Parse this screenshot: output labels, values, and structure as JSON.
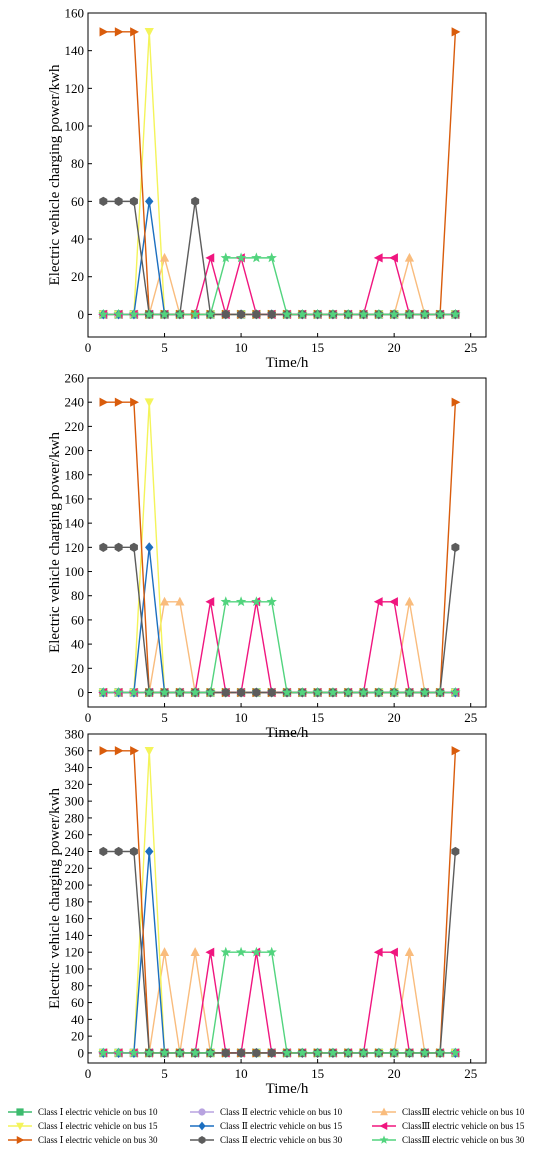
{
  "chart_data": [
    {
      "type": "line",
      "xlabel": "Time/h",
      "ylabel": "Electric vehicle charging power/kwh",
      "xlim": [
        0,
        26
      ],
      "ylim": [
        -12,
        160
      ],
      "xticks": [
        0,
        5,
        10,
        15,
        20,
        25
      ],
      "yticks": [
        0,
        20,
        40,
        60,
        80,
        100,
        120,
        140,
        160
      ],
      "x": [
        1,
        2,
        3,
        4,
        5,
        6,
        7,
        8,
        9,
        10,
        11,
        12,
        13,
        14,
        15,
        16,
        17,
        18,
        19,
        20,
        21,
        22,
        23,
        24
      ],
      "series": [
        {
          "name": "Class Ⅰ electric vehicle on bus 10",
          "color": "#3dbb6e",
          "marker": "square",
          "values": [
            0,
            0,
            0,
            0,
            0,
            0,
            0,
            0,
            0,
            0,
            0,
            0,
            0,
            0,
            0,
            0,
            0,
            0,
            0,
            0,
            0,
            0,
            0,
            0
          ]
        },
        {
          "name": "Class Ⅱ electric vehicle on bus 10",
          "color": "#b8a3e0",
          "marker": "circle",
          "values": [
            0,
            0,
            0,
            0,
            0,
            0,
            0,
            0,
            0,
            0,
            0,
            0,
            0,
            0,
            0,
            0,
            0,
            0,
            0,
            0,
            0,
            0,
            0,
            0
          ]
        },
        {
          "name": "ClassⅢ electric vehicle on bus 10",
          "color": "#f9bc7d",
          "marker": "triangle-up",
          "values": [
            0,
            0,
            0,
            0,
            30,
            0,
            0,
            0,
            0,
            0,
            0,
            0,
            0,
            0,
            0,
            0,
            0,
            0,
            0,
            0,
            30,
            0,
            0,
            0
          ]
        },
        {
          "name": "Class Ⅰ electric vehicle on bus 15",
          "color": "#f4f45a",
          "marker": "triangle-down",
          "values": [
            0,
            0,
            0,
            150,
            0,
            0,
            0,
            0,
            0,
            0,
            0,
            0,
            0,
            0,
            0,
            0,
            0,
            0,
            0,
            0,
            0,
            0,
            0,
            0
          ]
        },
        {
          "name": "Class Ⅱ electric vehicle on bus 15",
          "color": "#1c6fc0",
          "marker": "diamond",
          "values": [
            0,
            0,
            0,
            60,
            0,
            0,
            0,
            0,
            0,
            0,
            0,
            0,
            0,
            0,
            0,
            0,
            0,
            0,
            0,
            0,
            0,
            0,
            0,
            0
          ]
        },
        {
          "name": "ClassⅢ electric vehicle on bus 15",
          "color": "#f0167f",
          "marker": "triangle-left",
          "values": [
            0,
            0,
            0,
            0,
            0,
            0,
            0,
            30,
            0,
            30,
            0,
            0,
            0,
            0,
            0,
            0,
            0,
            0,
            30,
            30,
            0,
            0,
            0,
            0
          ]
        },
        {
          "name": "Class Ⅰ electric vehicle on bus 30",
          "color": "#d95c0c",
          "marker": "triangle-right",
          "values": [
            150,
            150,
            150,
            0,
            0,
            0,
            0,
            0,
            0,
            0,
            0,
            0,
            0,
            0,
            0,
            0,
            0,
            0,
            0,
            0,
            0,
            0,
            0,
            150
          ]
        },
        {
          "name": "Class Ⅱ electric vehicle on bus 30",
          "color": "#5c5c5c",
          "marker": "hexagon",
          "values": [
            60,
            60,
            60,
            0,
            0,
            0,
            60,
            0,
            0,
            0,
            0,
            0,
            0,
            0,
            0,
            0,
            0,
            0,
            0,
            0,
            0,
            0,
            0,
            0
          ]
        },
        {
          "name": "ClassⅢ electric vehicle on bus 30",
          "color": "#52d47e",
          "marker": "star",
          "values": [
            0,
            0,
            0,
            0,
            0,
            0,
            0,
            0,
            30,
            30,
            30,
            30,
            0,
            0,
            0,
            0,
            0,
            0,
            0,
            0,
            0,
            0,
            0,
            0
          ]
        }
      ]
    },
    {
      "type": "line",
      "xlabel": "Time/h",
      "ylabel": "Electric vehicle charging power/kwh",
      "xlim": [
        0,
        26
      ],
      "ylim": [
        -12,
        260
      ],
      "xticks": [
        0,
        5,
        10,
        15,
        20,
        25
      ],
      "yticks": [
        0,
        20,
        40,
        60,
        80,
        100,
        120,
        140,
        160,
        180,
        200,
        220,
        240,
        260
      ],
      "x": [
        1,
        2,
        3,
        4,
        5,
        6,
        7,
        8,
        9,
        10,
        11,
        12,
        13,
        14,
        15,
        16,
        17,
        18,
        19,
        20,
        21,
        22,
        23,
        24
      ],
      "series": [
        {
          "name": "Class Ⅰ electric vehicle on bus 10",
          "color": "#3dbb6e",
          "marker": "square",
          "values": [
            0,
            0,
            0,
            0,
            0,
            0,
            0,
            0,
            0,
            0,
            0,
            0,
            0,
            0,
            0,
            0,
            0,
            0,
            0,
            0,
            0,
            0,
            0,
            0
          ]
        },
        {
          "name": "Class Ⅱ electric vehicle on bus 10",
          "color": "#b8a3e0",
          "marker": "circle",
          "values": [
            0,
            0,
            0,
            0,
            0,
            0,
            0,
            0,
            0,
            0,
            0,
            0,
            0,
            0,
            0,
            0,
            0,
            0,
            0,
            0,
            0,
            0,
            0,
            0
          ]
        },
        {
          "name": "ClassⅢ electric vehicle on bus 10",
          "color": "#f9bc7d",
          "marker": "triangle-up",
          "values": [
            0,
            0,
            0,
            0,
            75,
            75,
            0,
            0,
            0,
            0,
            0,
            0,
            0,
            0,
            0,
            0,
            0,
            0,
            0,
            0,
            75,
            0,
            0,
            0
          ]
        },
        {
          "name": "Class Ⅰ electric vehicle on bus 15",
          "color": "#f4f45a",
          "marker": "triangle-down",
          "values": [
            0,
            0,
            0,
            240,
            0,
            0,
            0,
            0,
            0,
            0,
            0,
            0,
            0,
            0,
            0,
            0,
            0,
            0,
            0,
            0,
            0,
            0,
            0,
            0
          ]
        },
        {
          "name": "Class Ⅱ electric vehicle on bus 15",
          "color": "#1c6fc0",
          "marker": "diamond",
          "values": [
            0,
            0,
            0,
            120,
            0,
            0,
            0,
            0,
            0,
            0,
            0,
            0,
            0,
            0,
            0,
            0,
            0,
            0,
            0,
            0,
            0,
            0,
            0,
            0
          ]
        },
        {
          "name": "ClassⅢ electric vehicle on bus 15",
          "color": "#f0167f",
          "marker": "triangle-left",
          "values": [
            0,
            0,
            0,
            0,
            0,
            0,
            0,
            75,
            0,
            0,
            75,
            0,
            0,
            0,
            0,
            0,
            0,
            0,
            75,
            75,
            0,
            0,
            0,
            0
          ]
        },
        {
          "name": "Class Ⅰ electric vehicle on bus 30",
          "color": "#d95c0c",
          "marker": "triangle-right",
          "values": [
            240,
            240,
            240,
            0,
            0,
            0,
            0,
            0,
            0,
            0,
            0,
            0,
            0,
            0,
            0,
            0,
            0,
            0,
            0,
            0,
            0,
            0,
            0,
            240
          ]
        },
        {
          "name": "Class Ⅱ electric vehicle on bus 30",
          "color": "#5c5c5c",
          "marker": "hexagon",
          "values": [
            120,
            120,
            120,
            0,
            0,
            0,
            0,
            0,
            0,
            0,
            0,
            0,
            0,
            0,
            0,
            0,
            0,
            0,
            0,
            0,
            0,
            0,
            0,
            120
          ]
        },
        {
          "name": "ClassⅢ electric vehicle on bus 30",
          "color": "#52d47e",
          "marker": "star",
          "values": [
            0,
            0,
            0,
            0,
            0,
            0,
            0,
            0,
            75,
            75,
            75,
            75,
            0,
            0,
            0,
            0,
            0,
            0,
            0,
            0,
            0,
            0,
            0,
            0
          ]
        }
      ]
    },
    {
      "type": "line",
      "xlabel": "Time/h",
      "ylabel": "Electric vehicle charging power/kwh",
      "xlim": [
        0,
        26
      ],
      "ylim": [
        -12,
        380
      ],
      "xticks": [
        0,
        5,
        10,
        15,
        20,
        25
      ],
      "yticks": [
        0,
        20,
        40,
        60,
        80,
        100,
        120,
        140,
        160,
        180,
        200,
        220,
        240,
        260,
        280,
        300,
        320,
        340,
        360,
        380
      ],
      "x": [
        1,
        2,
        3,
        4,
        5,
        6,
        7,
        8,
        9,
        10,
        11,
        12,
        13,
        14,
        15,
        16,
        17,
        18,
        19,
        20,
        21,
        22,
        23,
        24
      ],
      "series": [
        {
          "name": "Class Ⅰ electric vehicle on bus 10",
          "color": "#3dbb6e",
          "marker": "square",
          "values": [
            0,
            0,
            0,
            0,
            0,
            0,
            0,
            0,
            0,
            0,
            0,
            0,
            0,
            0,
            0,
            0,
            0,
            0,
            0,
            0,
            0,
            0,
            0,
            0
          ]
        },
        {
          "name": "Class Ⅱ electric vehicle on bus 10",
          "color": "#b8a3e0",
          "marker": "circle",
          "values": [
            0,
            0,
            0,
            0,
            0,
            0,
            0,
            0,
            0,
            0,
            0,
            0,
            0,
            0,
            0,
            0,
            0,
            0,
            0,
            0,
            0,
            0,
            0,
            0
          ]
        },
        {
          "name": "ClassⅢ electric vehicle on bus 10",
          "color": "#f9bc7d",
          "marker": "triangle-up",
          "values": [
            0,
            0,
            0,
            0,
            120,
            0,
            120,
            0,
            0,
            0,
            0,
            0,
            0,
            0,
            0,
            0,
            0,
            0,
            0,
            0,
            120,
            0,
            0,
            0
          ]
        },
        {
          "name": "Class Ⅰ electric vehicle on bus 15",
          "color": "#f4f45a",
          "marker": "triangle-down",
          "values": [
            0,
            0,
            0,
            360,
            0,
            0,
            0,
            0,
            0,
            0,
            0,
            0,
            0,
            0,
            0,
            0,
            0,
            0,
            0,
            0,
            0,
            0,
            0,
            0
          ]
        },
        {
          "name": "Class Ⅱ electric vehicle on bus 15",
          "color": "#1c6fc0",
          "marker": "diamond",
          "values": [
            0,
            0,
            0,
            240,
            0,
            0,
            0,
            0,
            0,
            0,
            0,
            0,
            0,
            0,
            0,
            0,
            0,
            0,
            0,
            0,
            0,
            0,
            0,
            0
          ]
        },
        {
          "name": "ClassⅢ electric vehicle on bus 15",
          "color": "#f0167f",
          "marker": "triangle-left",
          "values": [
            0,
            0,
            0,
            0,
            0,
            0,
            0,
            120,
            0,
            0,
            120,
            0,
            0,
            0,
            0,
            0,
            0,
            0,
            120,
            120,
            0,
            0,
            0,
            0
          ]
        },
        {
          "name": "Class Ⅰ electric vehicle on bus 30",
          "color": "#d95c0c",
          "marker": "triangle-right",
          "values": [
            360,
            360,
            360,
            0,
            0,
            0,
            0,
            0,
            0,
            0,
            0,
            0,
            0,
            0,
            0,
            0,
            0,
            0,
            0,
            0,
            0,
            0,
            0,
            360
          ]
        },
        {
          "name": "Class Ⅱ electric vehicle on bus 30",
          "color": "#5c5c5c",
          "marker": "hexagon",
          "values": [
            240,
            240,
            240,
            0,
            0,
            0,
            0,
            0,
            0,
            0,
            0,
            0,
            0,
            0,
            0,
            0,
            0,
            0,
            0,
            0,
            0,
            0,
            0,
            240
          ]
        },
        {
          "name": "ClassⅢ electric vehicle on bus 30",
          "color": "#52d47e",
          "marker": "star",
          "values": [
            0,
            0,
            0,
            0,
            0,
            0,
            0,
            0,
            120,
            120,
            120,
            120,
            0,
            0,
            0,
            0,
            0,
            0,
            0,
            0,
            0,
            0,
            0,
            0
          ]
        }
      ]
    }
  ],
  "legend": {
    "placement": "bottom",
    "entries": [
      {
        "label": "Class Ⅰ electric vehicle on bus 10",
        "color": "#3dbb6e",
        "marker": "square"
      },
      {
        "label": "Class Ⅱ electric vehicle on bus 10",
        "color": "#b8a3e0",
        "marker": "circle"
      },
      {
        "label": "ClassⅢ electric vehicle on bus 10",
        "color": "#f9bc7d",
        "marker": "triangle-up"
      },
      {
        "label": "Class Ⅰ electric vehicle on bus 15",
        "color": "#f4f45a",
        "marker": "triangle-down"
      },
      {
        "label": "Class Ⅱ electric vehicle on bus 15",
        "color": "#1c6fc0",
        "marker": "diamond"
      },
      {
        "label": "ClassⅢ electric vehicle on bus 15",
        "color": "#f0167f",
        "marker": "triangle-left"
      },
      {
        "label": "Class Ⅰ electric vehicle on bus 30",
        "color": "#d95c0c",
        "marker": "triangle-right"
      },
      {
        "label": "Class Ⅱ electric vehicle on bus 30",
        "color": "#5c5c5c",
        "marker": "hexagon"
      },
      {
        "label": "ClassⅢ electric vehicle on bus 30",
        "color": "#52d47e",
        "marker": "star"
      }
    ]
  }
}
